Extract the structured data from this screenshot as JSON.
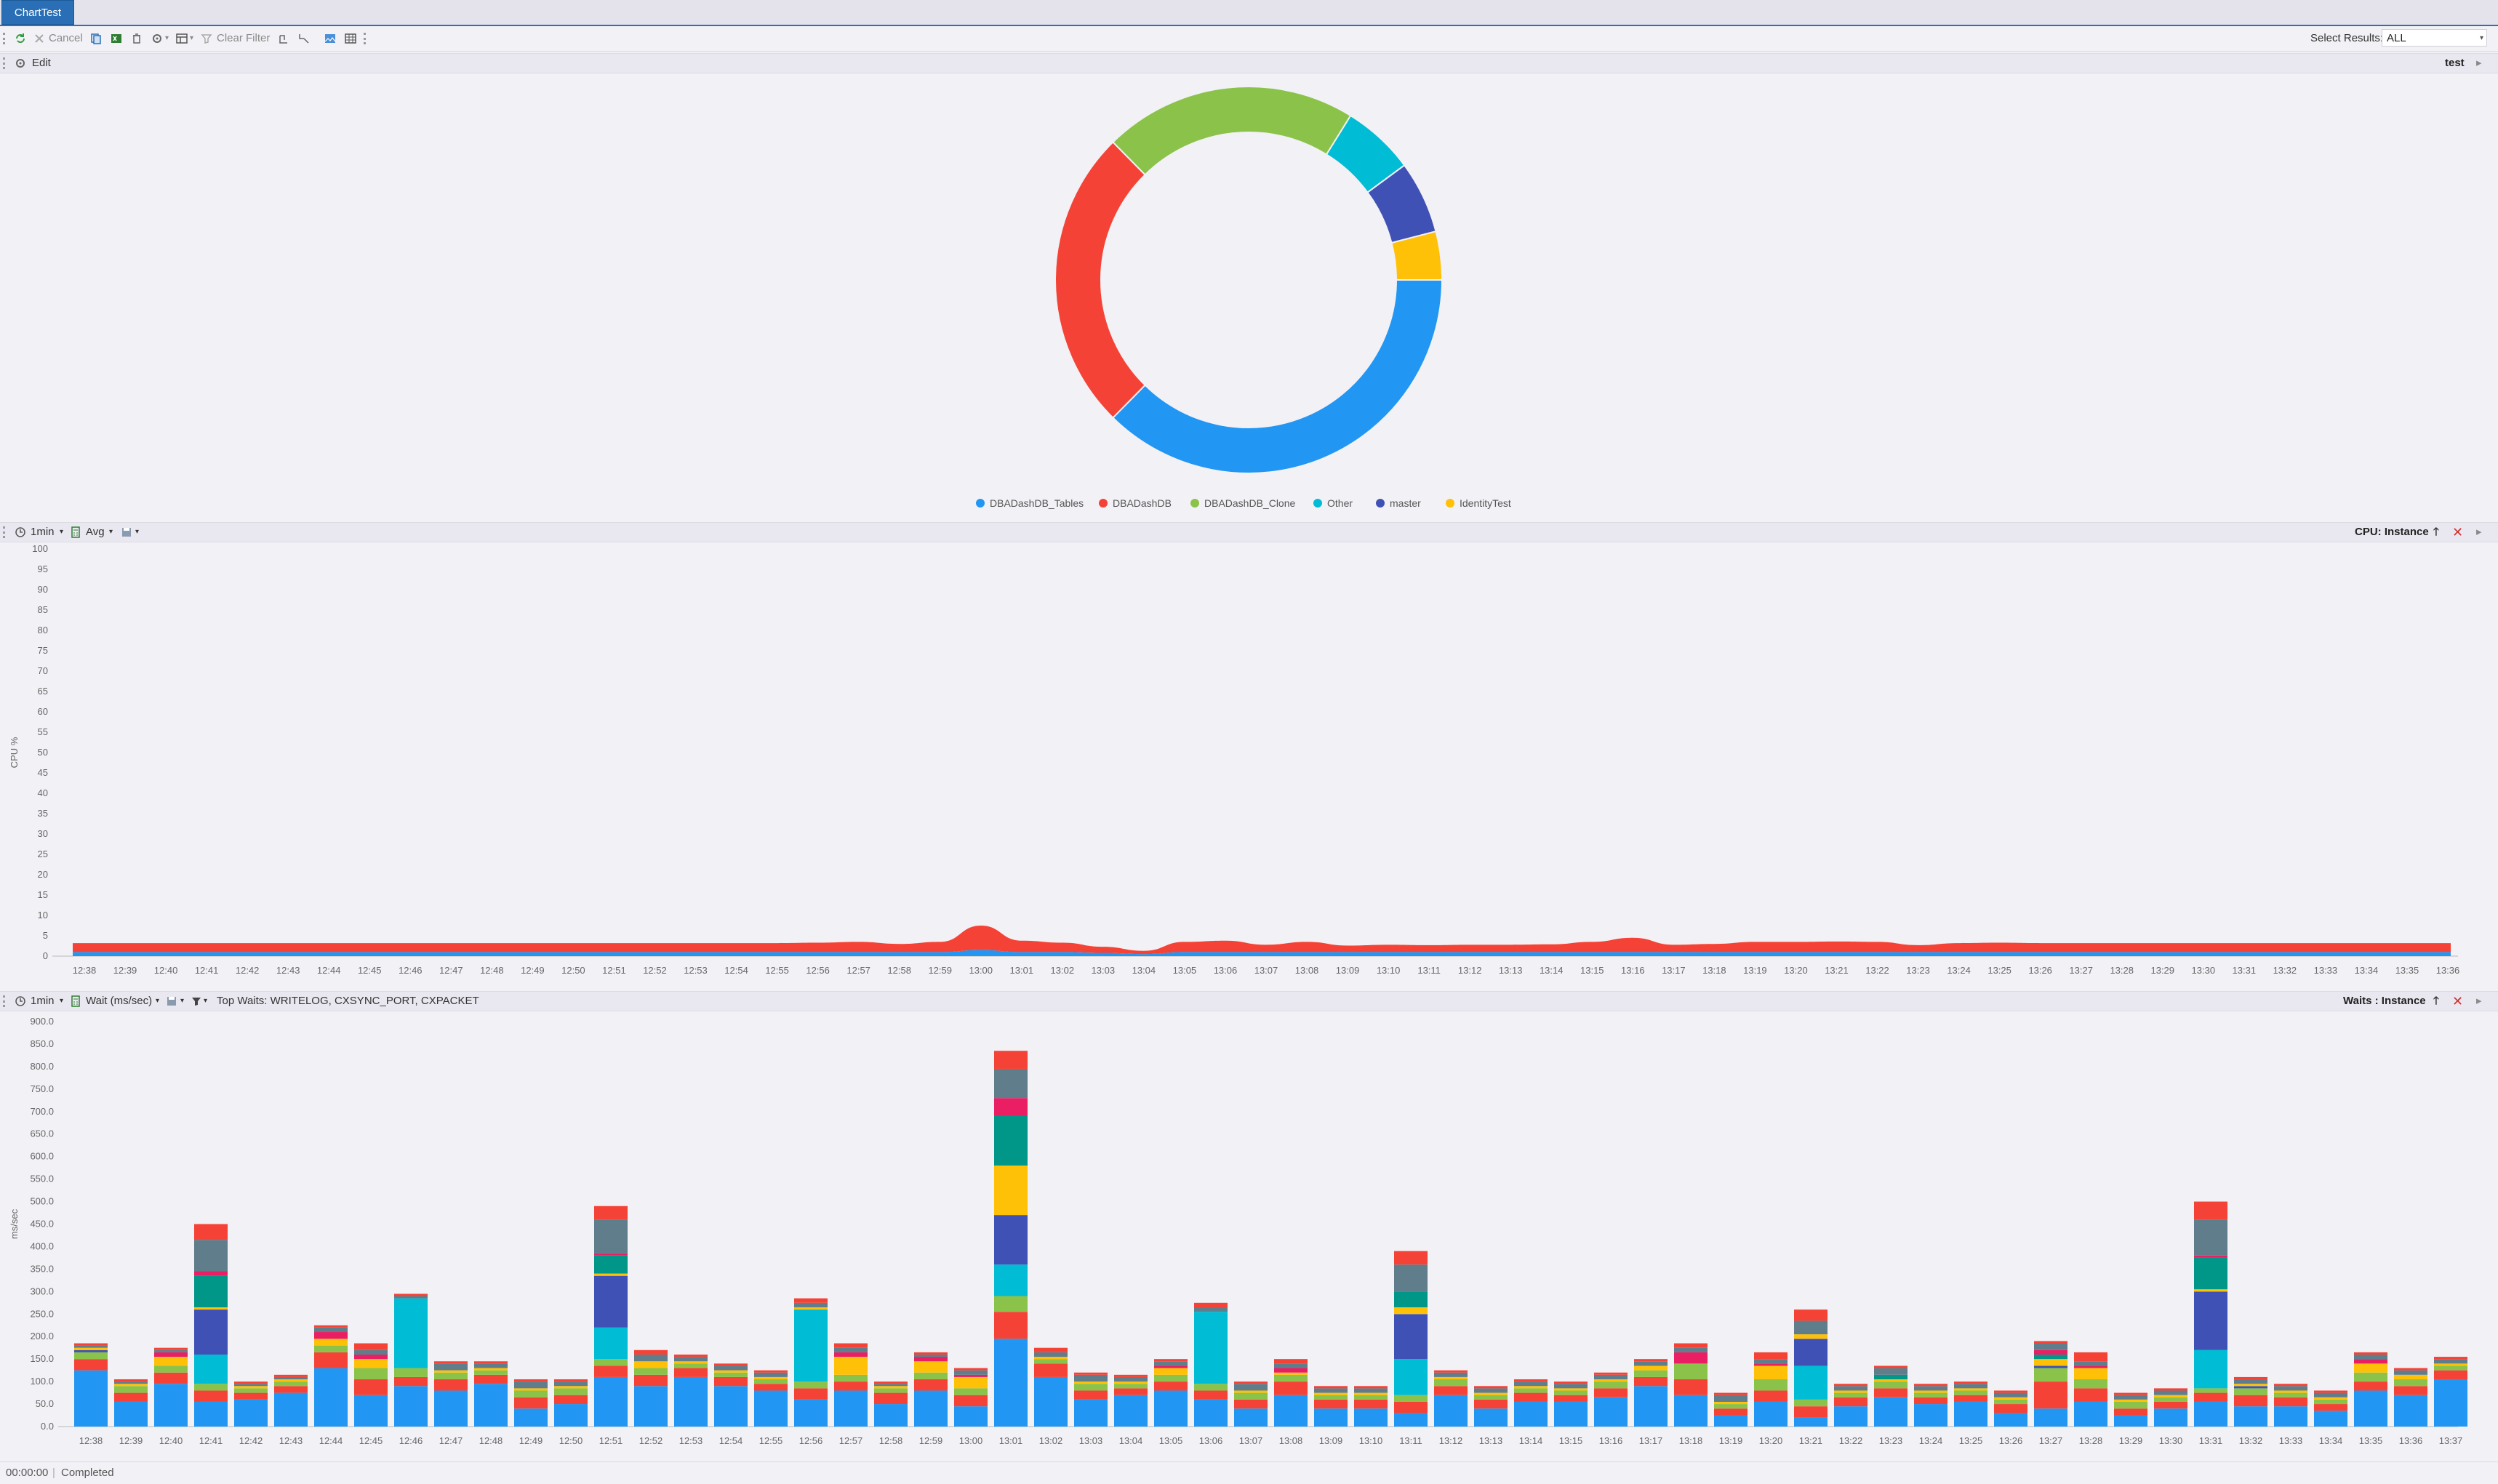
{
  "tab": {
    "label": "ChartTest"
  },
  "toolbar": {
    "cancel_label": "Cancel",
    "clear_filter_label": "Clear Filter",
    "select_results_label": "Select Results:",
    "select_results_value": "ALL"
  },
  "edit_bar": {
    "edit_label": "Edit",
    "title": "test"
  },
  "cpu_bar": {
    "interval": "1min",
    "agg": "Avg",
    "title": "CPU: Instance"
  },
  "waits_bar": {
    "interval": "1min",
    "metric": "Wait (ms/sec)",
    "top_waits": "Top Waits: WRITELOG, CXSYNC_PORT, CXPACKET",
    "title": "Waits : Instance"
  },
  "status": {
    "time": "00:00:00",
    "text": "Completed"
  },
  "colors": {
    "blue": "#2196f3",
    "red": "#f44336",
    "green": "#8bc34a",
    "cyan": "#00bcd4",
    "indigo": "#3f51b5",
    "amber": "#ffc107",
    "teal": "#009688",
    "pink": "#e91e63",
    "slate": "#607d8b"
  },
  "chart_data": [
    {
      "type": "pie",
      "donut": true,
      "labels": [
        "DBADashDB_Tables",
        "DBADashDB",
        "DBADashDB_Clone",
        "Other",
        "master",
        "IdentityTest"
      ],
      "values": [
        37,
        25,
        21,
        6,
        6,
        4
      ],
      "colors": [
        "#2196f3",
        "#f44336",
        "#8bc34a",
        "#00bcd4",
        "#3f51b5",
        "#ffc107"
      ],
      "legend": "bottom"
    },
    {
      "type": "area",
      "ylabel": "CPU %",
      "ylim": [
        0,
        100
      ],
      "yticks": [
        0,
        5,
        10,
        15,
        20,
        25,
        30,
        35,
        40,
        45,
        50,
        55,
        60,
        65,
        70,
        75,
        80,
        85,
        90,
        95,
        100
      ],
      "x": [
        "12:38",
        "12:39",
        "12:40",
        "12:41",
        "12:42",
        "12:43",
        "12:44",
        "12:45",
        "12:46",
        "12:47",
        "12:48",
        "12:49",
        "12:50",
        "12:51",
        "12:52",
        "12:53",
        "12:54",
        "12:55",
        "12:56",
        "12:57",
        "12:58",
        "12:59",
        "13:00",
        "13:01",
        "13:02",
        "13:03",
        "13:04",
        "13:05",
        "13:06",
        "13:07",
        "13:08",
        "13:09",
        "13:10",
        "13:11",
        "13:12",
        "13:13",
        "13:14",
        "13:15",
        "13:16",
        "13:17",
        "13:18",
        "13:19",
        "13:20",
        "13:21",
        "13:22",
        "13:23",
        "13:24",
        "13:25",
        "13:26",
        "13:27",
        "13:28",
        "13:29",
        "13:30",
        "13:31",
        "13:32",
        "13:33",
        "13:34",
        "13:35",
        "13:36"
      ],
      "series": [
        {
          "values": [
            1,
            1,
            1,
            1,
            1,
            1,
            1,
            1,
            1,
            1,
            1,
            1,
            1,
            1,
            1,
            1,
            1,
            1,
            1,
            1,
            1,
            1,
            1.5,
            1,
            1,
            0.8,
            0.5,
            1,
            1,
            1,
            1,
            1,
            1,
            1,
            1,
            1,
            1,
            1,
            1,
            1,
            1,
            1,
            1,
            1,
            1,
            1,
            1,
            1,
            1,
            1,
            1,
            1,
            1,
            1,
            1,
            1,
            1,
            1,
            1
          ]
        },
        {
          "values": [
            2.2,
            2.2,
            2.2,
            2.2,
            2.2,
            2.2,
            2.2,
            2.2,
            2.2,
            2.2,
            2.2,
            2.2,
            2.2,
            2.2,
            2.2,
            2.2,
            2.2,
            2.2,
            2.3,
            2.5,
            2,
            2.5,
            6,
            2.8,
            2.3,
            1.5,
            0.8,
            2.5,
            2.8,
            1.8,
            2.5,
            1.6,
            1.8,
            1.7,
            1.8,
            1.8,
            1.9,
            2.5,
            3.5,
            1.8,
            2,
            2.5,
            2.5,
            2.6,
            2.5,
            1.7,
            2.2,
            2.3,
            2.2,
            2.2,
            2.2,
            2.2,
            2.2,
            2.2,
            2.2,
            2.2,
            2.2,
            2.2,
            2.2
          ]
        }
      ]
    },
    {
      "type": "bar",
      "stacked": true,
      "ylabel": "ms/sec",
      "ylim": [
        0,
        900
      ],
      "yticks": [
        "0.0",
        "50.0",
        "100.0",
        "150.0",
        "200.0",
        "250.0",
        "300.0",
        "350.0",
        "400.0",
        "450.0",
        "500.0",
        "550.0",
        "600.0",
        "650.0",
        "700.0",
        "750.0",
        "800.0",
        "850.0",
        "900.0"
      ],
      "categories": [
        "12:38",
        "12:39",
        "12:40",
        "12:41",
        "12:42",
        "12:43",
        "12:44",
        "12:45",
        "12:46",
        "12:47",
        "12:48",
        "12:49",
        "12:50",
        "12:51",
        "12:52",
        "12:53",
        "12:54",
        "12:55",
        "12:56",
        "12:57",
        "12:58",
        "12:59",
        "13:00",
        "13:01",
        "13:02",
        "13:03",
        "13:04",
        "13:05",
        "13:06",
        "13:07",
        "13:08",
        "13:09",
        "13:10",
        "13:11",
        "13:12",
        "13:13",
        "13:14",
        "13:15",
        "13:16",
        "13:17",
        "13:18",
        "13:19",
        "13:20",
        "13:21",
        "13:22",
        "13:23",
        "13:24",
        "13:25",
        "13:26",
        "13:27",
        "13:28",
        "13:29",
        "13:30",
        "13:31",
        "13:32",
        "13:33",
        "13:34",
        "13:35",
        "13:36",
        "13:37"
      ],
      "series": [
        {
          "color": "#2196f3",
          "values": [
            125,
            55,
            95,
            55,
            60,
            75,
            130,
            70,
            90,
            80,
            95,
            40,
            50,
            110,
            90,
            110,
            90,
            80,
            60,
            80,
            50,
            80,
            45,
            195,
            110,
            60,
            70,
            80,
            60,
            40,
            70,
            40,
            40,
            30,
            70,
            40,
            55,
            55,
            65,
            90,
            70,
            25,
            55,
            20,
            45,
            65,
            50,
            55,
            30,
            40,
            55,
            25,
            40,
            55,
            45,
            45,
            35,
            80,
            70,
            105
          ]
        },
        {
          "color": "#f44336",
          "values": [
            25,
            20,
            25,
            25,
            15,
            15,
            35,
            35,
            20,
            25,
            20,
            25,
            20,
            25,
            25,
            20,
            20,
            15,
            25,
            20,
            25,
            25,
            25,
            60,
            30,
            20,
            15,
            20,
            20,
            20,
            30,
            20,
            20,
            25,
            20,
            20,
            20,
            15,
            20,
            20,
            35,
            15,
            25,
            25,
            20,
            20,
            15,
            15,
            20,
            60,
            30,
            15,
            15,
            20,
            25,
            20,
            15,
            20,
            20,
            20
          ]
        },
        {
          "color": "#8bc34a",
          "values": [
            15,
            15,
            15,
            15,
            10,
            10,
            15,
            25,
            20,
            15,
            10,
            15,
            15,
            15,
            15,
            10,
            10,
            10,
            15,
            15,
            10,
            15,
            15,
            35,
            10,
            15,
            10,
            15,
            15,
            15,
            15,
            10,
            10,
            15,
            15,
            10,
            10,
            10,
            15,
            15,
            35,
            10,
            25,
            15,
            10,
            15,
            10,
            10,
            10,
            30,
            20,
            15,
            10,
            10,
            15,
            10,
            10,
            20,
            15,
            10
          ]
        },
        {
          "color": "#00bcd4",
          "values": [
            0,
            0,
            0,
            65,
            0,
            0,
            0,
            0,
            155,
            0,
            0,
            0,
            0,
            70,
            0,
            0,
            0,
            0,
            160,
            0,
            0,
            0,
            0,
            70,
            0,
            0,
            0,
            0,
            160,
            0,
            0,
            0,
            0,
            80,
            0,
            0,
            0,
            0,
            0,
            0,
            0,
            0,
            0,
            75,
            0,
            0,
            0,
            0,
            0,
            0,
            0,
            0,
            0,
            85,
            0,
            0,
            0,
            0,
            0,
            0
          ]
        },
        {
          "color": "#3f51b5",
          "values": [
            5,
            0,
            0,
            100,
            0,
            0,
            0,
            0,
            0,
            0,
            0,
            0,
            0,
            115,
            0,
            0,
            0,
            0,
            0,
            0,
            0,
            0,
            0,
            110,
            0,
            0,
            0,
            0,
            0,
            0,
            0,
            0,
            0,
            100,
            0,
            0,
            0,
            0,
            0,
            0,
            0,
            0,
            0,
            60,
            0,
            0,
            0,
            0,
            0,
            5,
            0,
            0,
            0,
            130,
            5,
            0,
            0,
            0,
            0,
            0
          ]
        },
        {
          "color": "#ffc107",
          "values": [
            5,
            5,
            20,
            5,
            5,
            5,
            15,
            20,
            0,
            5,
            5,
            5,
            5,
            5,
            15,
            5,
            5,
            5,
            5,
            40,
            5,
            25,
            25,
            110,
            5,
            5,
            5,
            15,
            0,
            5,
            5,
            5,
            5,
            15,
            5,
            5,
            5,
            5,
            5,
            10,
            0,
            5,
            30,
            10,
            5,
            5,
            5,
            5,
            5,
            15,
            25,
            5,
            5,
            5,
            5,
            5,
            5,
            20,
            10,
            5
          ]
        },
        {
          "color": "#009688",
          "values": [
            0,
            0,
            0,
            70,
            0,
            0,
            0,
            0,
            0,
            0,
            0,
            0,
            0,
            40,
            0,
            0,
            0,
            0,
            0,
            0,
            0,
            0,
            0,
            110,
            0,
            0,
            0,
            0,
            0,
            0,
            0,
            0,
            0,
            35,
            0,
            0,
            0,
            0,
            0,
            0,
            0,
            0,
            0,
            0,
            0,
            10,
            0,
            0,
            0,
            10,
            0,
            0,
            0,
            70,
            0,
            0,
            0,
            0,
            0,
            0
          ]
        },
        {
          "color": "#e91e63",
          "values": [
            0,
            0,
            10,
            10,
            0,
            0,
            15,
            10,
            0,
            0,
            0,
            0,
            0,
            5,
            0,
            0,
            0,
            0,
            0,
            10,
            0,
            10,
            5,
            40,
            0,
            0,
            0,
            5,
            0,
            0,
            10,
            0,
            0,
            0,
            0,
            0,
            0,
            0,
            0,
            0,
            25,
            0,
            5,
            0,
            0,
            0,
            0,
            0,
            0,
            10,
            5,
            0,
            0,
            5,
            0,
            0,
            0,
            10,
            0,
            0
          ]
        },
        {
          "color": "#607d8b",
          "values": [
            5,
            5,
            5,
            70,
            5,
            5,
            10,
            10,
            5,
            15,
            10,
            15,
            10,
            75,
            15,
            10,
            10,
            10,
            10,
            10,
            5,
            5,
            10,
            65,
            10,
            15,
            10,
            10,
            10,
            15,
            10,
            10,
            10,
            60,
            10,
            10,
            10,
            10,
            10,
            10,
            10,
            15,
            10,
            30,
            10,
            15,
            10,
            10,
            10,
            15,
            10,
            10,
            10,
            80,
            10,
            10,
            10,
            10,
            10,
            10
          ]
        },
        {
          "color": "#f44336",
          "values": [
            5,
            5,
            5,
            35,
            5,
            5,
            5,
            15,
            5,
            5,
            5,
            5,
            5,
            30,
            10,
            5,
            5,
            5,
            10,
            10,
            5,
            5,
            5,
            40,
            10,
            5,
            5,
            5,
            10,
            5,
            10,
            5,
            5,
            30,
            5,
            5,
            5,
            5,
            5,
            5,
            10,
            5,
            15,
            25,
            5,
            5,
            5,
            5,
            5,
            5,
            20,
            5,
            5,
            40,
            5,
            5,
            5,
            5,
            5,
            5
          ]
        }
      ]
    }
  ]
}
